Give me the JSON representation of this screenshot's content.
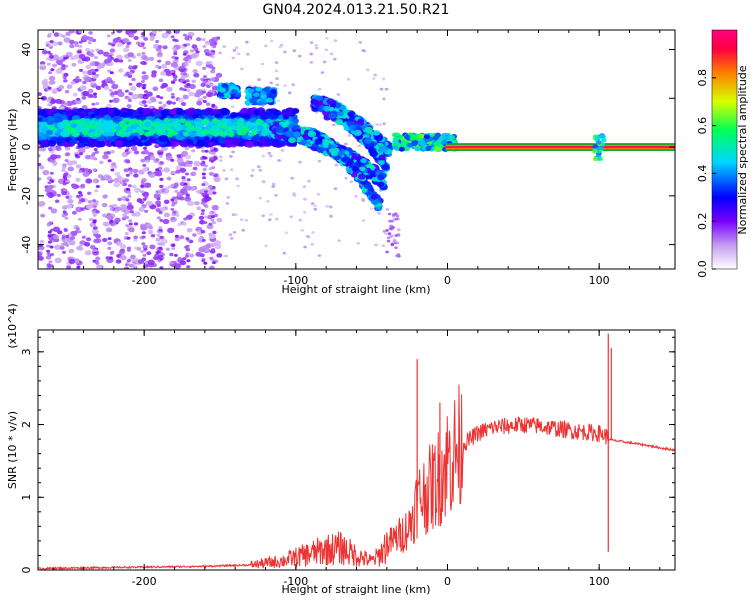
{
  "title": "GN04.2024.013.21.50.R21",
  "chart_data": [
    {
      "type": "heatmap",
      "xlabel": "Height of straight line (km)",
      "ylabel": "Frequency (Hz)",
      "xlim": [
        -270,
        150
      ],
      "ylim": [
        -50,
        48
      ],
      "xticks": [
        -200,
        -100,
        0,
        100
      ],
      "yticks": [
        -40,
        -20,
        0,
        20,
        40
      ],
      "colorbar": {
        "label": "Normalized spectral amplitude",
        "range": [
          0,
          1
        ],
        "ticks": [
          "0.0",
          "0.2",
          "0.4",
          "0.6",
          "0.8"
        ],
        "colors": [
          "#ffffff",
          "#c49cf0",
          "#7a00ff",
          "#0000ff",
          "#00d8ff",
          "#00ff55",
          "#d8ff00",
          "#ff8000",
          "#ff0040",
          "#ff0080"
        ]
      },
      "features": [
        {
          "x": [
            -270,
            -155
          ],
          "y_center": 8,
          "amplitude": 0.35
        },
        {
          "x": [
            -270,
            -100
          ],
          "y_center": 8,
          "amplitude": 0.55
        },
        {
          "x": [
            -150,
            -140
          ],
          "y_center": 23,
          "amplitude": 0.45
        },
        {
          "x": [
            -130,
            -115
          ],
          "y_center": 21,
          "amplitude": 0.45
        },
        {
          "x": [
            -120,
            -40
          ],
          "y_center": 4,
          "amplitude": 0.5
        },
        {
          "x": [
            -85,
            -40
          ],
          "y_center": 10,
          "amplitude": 0.5
        },
        {
          "x": [
            -35,
            0
          ],
          "y_center": 2,
          "amplitude": 0.7
        },
        {
          "x": [
            0,
            150
          ],
          "y_center": 0,
          "amplitude": 0.95
        }
      ]
    },
    {
      "type": "line",
      "xlabel": "Height of straight line (km)",
      "ylabel": "SNR (10 * v/v)",
      "y_multiplier": "(x10^4)",
      "xlim": [
        -270,
        150
      ],
      "ylim": [
        0,
        3.3
      ],
      "xticks": [
        -200,
        -100,
        0,
        100
      ],
      "yticks": [
        0,
        1,
        2,
        3
      ],
      "series": [
        {
          "color": "#ee3333",
          "x": [
            -270,
            -240,
            -200,
            -160,
            -130,
            -110,
            -95,
            -80,
            -70,
            -60,
            -50,
            -45,
            -40,
            -35,
            -30,
            -25,
            -20,
            -15,
            -10,
            -5,
            0,
            10,
            20,
            30,
            40,
            50,
            60,
            70,
            80,
            90,
            100,
            104,
            106,
            110,
            120,
            130,
            140,
            150
          ],
          "y": [
            0.02,
            0.03,
            0.04,
            0.05,
            0.07,
            0.12,
            0.2,
            0.28,
            0.3,
            0.2,
            0.12,
            0.2,
            0.35,
            0.42,
            0.5,
            0.6,
            0.95,
            1.05,
            1.15,
            1.3,
            1.5,
            1.72,
            1.88,
            1.96,
            1.98,
            2.0,
            1.98,
            1.95,
            1.92,
            1.9,
            1.88,
            1.85,
            1.8,
            1.78,
            1.75,
            1.72,
            1.68,
            1.65
          ]
        }
      ],
      "peaks": [
        {
          "x": -20,
          "y": 2.9
        },
        {
          "x": -5,
          "y": 2.3
        },
        {
          "x": 106,
          "y": 3.25
        },
        {
          "x": 108,
          "y": 3.05
        }
      ]
    }
  ]
}
